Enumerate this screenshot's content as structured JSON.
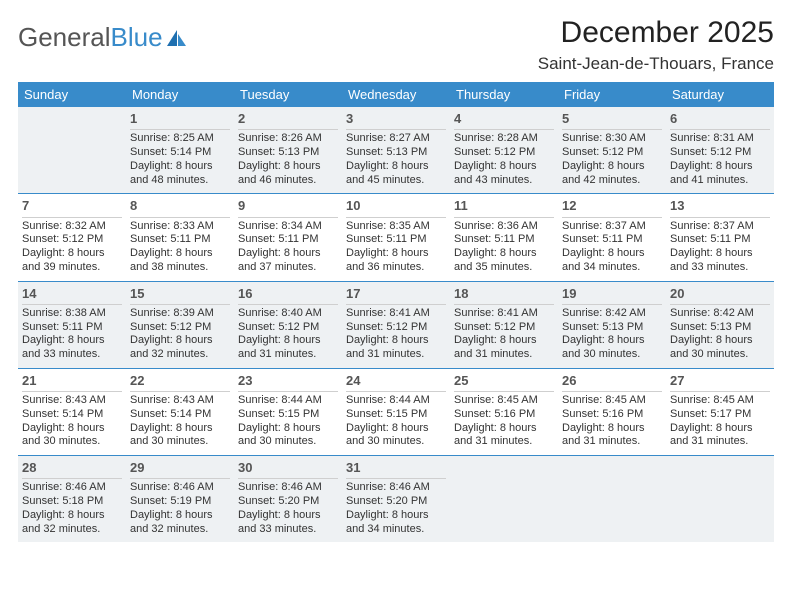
{
  "logo": {
    "text1": "General",
    "text2": "Blue"
  },
  "title": "December 2025",
  "location": "Saint-Jean-de-Thouars, France",
  "colors": {
    "accent": "#388bca",
    "shade": "#eef1f3",
    "rule": "#cfcfcf",
    "text": "#333333"
  },
  "dow": [
    "Sunday",
    "Monday",
    "Tuesday",
    "Wednesday",
    "Thursday",
    "Friday",
    "Saturday"
  ],
  "weeks": [
    [
      {
        "n": "",
        "sr": "",
        "ss": "",
        "dl": ""
      },
      {
        "n": "1",
        "sr": "Sunrise: 8:25 AM",
        "ss": "Sunset: 5:14 PM",
        "dl": "Daylight: 8 hours and 48 minutes."
      },
      {
        "n": "2",
        "sr": "Sunrise: 8:26 AM",
        "ss": "Sunset: 5:13 PM",
        "dl": "Daylight: 8 hours and 46 minutes."
      },
      {
        "n": "3",
        "sr": "Sunrise: 8:27 AM",
        "ss": "Sunset: 5:13 PM",
        "dl": "Daylight: 8 hours and 45 minutes."
      },
      {
        "n": "4",
        "sr": "Sunrise: 8:28 AM",
        "ss": "Sunset: 5:12 PM",
        "dl": "Daylight: 8 hours and 43 minutes."
      },
      {
        "n": "5",
        "sr": "Sunrise: 8:30 AM",
        "ss": "Sunset: 5:12 PM",
        "dl": "Daylight: 8 hours and 42 minutes."
      },
      {
        "n": "6",
        "sr": "Sunrise: 8:31 AM",
        "ss": "Sunset: 5:12 PM",
        "dl": "Daylight: 8 hours and 41 minutes."
      }
    ],
    [
      {
        "n": "7",
        "sr": "Sunrise: 8:32 AM",
        "ss": "Sunset: 5:12 PM",
        "dl": "Daylight: 8 hours and 39 minutes."
      },
      {
        "n": "8",
        "sr": "Sunrise: 8:33 AM",
        "ss": "Sunset: 5:11 PM",
        "dl": "Daylight: 8 hours and 38 minutes."
      },
      {
        "n": "9",
        "sr": "Sunrise: 8:34 AM",
        "ss": "Sunset: 5:11 PM",
        "dl": "Daylight: 8 hours and 37 minutes."
      },
      {
        "n": "10",
        "sr": "Sunrise: 8:35 AM",
        "ss": "Sunset: 5:11 PM",
        "dl": "Daylight: 8 hours and 36 minutes."
      },
      {
        "n": "11",
        "sr": "Sunrise: 8:36 AM",
        "ss": "Sunset: 5:11 PM",
        "dl": "Daylight: 8 hours and 35 minutes."
      },
      {
        "n": "12",
        "sr": "Sunrise: 8:37 AM",
        "ss": "Sunset: 5:11 PM",
        "dl": "Daylight: 8 hours and 34 minutes."
      },
      {
        "n": "13",
        "sr": "Sunrise: 8:37 AM",
        "ss": "Sunset: 5:11 PM",
        "dl": "Daylight: 8 hours and 33 minutes."
      }
    ],
    [
      {
        "n": "14",
        "sr": "Sunrise: 8:38 AM",
        "ss": "Sunset: 5:11 PM",
        "dl": "Daylight: 8 hours and 33 minutes."
      },
      {
        "n": "15",
        "sr": "Sunrise: 8:39 AM",
        "ss": "Sunset: 5:12 PM",
        "dl": "Daylight: 8 hours and 32 minutes."
      },
      {
        "n": "16",
        "sr": "Sunrise: 8:40 AM",
        "ss": "Sunset: 5:12 PM",
        "dl": "Daylight: 8 hours and 31 minutes."
      },
      {
        "n": "17",
        "sr": "Sunrise: 8:41 AM",
        "ss": "Sunset: 5:12 PM",
        "dl": "Daylight: 8 hours and 31 minutes."
      },
      {
        "n": "18",
        "sr": "Sunrise: 8:41 AM",
        "ss": "Sunset: 5:12 PM",
        "dl": "Daylight: 8 hours and 31 minutes."
      },
      {
        "n": "19",
        "sr": "Sunrise: 8:42 AM",
        "ss": "Sunset: 5:13 PM",
        "dl": "Daylight: 8 hours and 30 minutes."
      },
      {
        "n": "20",
        "sr": "Sunrise: 8:42 AM",
        "ss": "Sunset: 5:13 PM",
        "dl": "Daylight: 8 hours and 30 minutes."
      }
    ],
    [
      {
        "n": "21",
        "sr": "Sunrise: 8:43 AM",
        "ss": "Sunset: 5:14 PM",
        "dl": "Daylight: 8 hours and 30 minutes."
      },
      {
        "n": "22",
        "sr": "Sunrise: 8:43 AM",
        "ss": "Sunset: 5:14 PM",
        "dl": "Daylight: 8 hours and 30 minutes."
      },
      {
        "n": "23",
        "sr": "Sunrise: 8:44 AM",
        "ss": "Sunset: 5:15 PM",
        "dl": "Daylight: 8 hours and 30 minutes."
      },
      {
        "n": "24",
        "sr": "Sunrise: 8:44 AM",
        "ss": "Sunset: 5:15 PM",
        "dl": "Daylight: 8 hours and 30 minutes."
      },
      {
        "n": "25",
        "sr": "Sunrise: 8:45 AM",
        "ss": "Sunset: 5:16 PM",
        "dl": "Daylight: 8 hours and 31 minutes."
      },
      {
        "n": "26",
        "sr": "Sunrise: 8:45 AM",
        "ss": "Sunset: 5:16 PM",
        "dl": "Daylight: 8 hours and 31 minutes."
      },
      {
        "n": "27",
        "sr": "Sunrise: 8:45 AM",
        "ss": "Sunset: 5:17 PM",
        "dl": "Daylight: 8 hours and 31 minutes."
      }
    ],
    [
      {
        "n": "28",
        "sr": "Sunrise: 8:46 AM",
        "ss": "Sunset: 5:18 PM",
        "dl": "Daylight: 8 hours and 32 minutes."
      },
      {
        "n": "29",
        "sr": "Sunrise: 8:46 AM",
        "ss": "Sunset: 5:19 PM",
        "dl": "Daylight: 8 hours and 32 minutes."
      },
      {
        "n": "30",
        "sr": "Sunrise: 8:46 AM",
        "ss": "Sunset: 5:20 PM",
        "dl": "Daylight: 8 hours and 33 minutes."
      },
      {
        "n": "31",
        "sr": "Sunrise: 8:46 AM",
        "ss": "Sunset: 5:20 PM",
        "dl": "Daylight: 8 hours and 34 minutes."
      },
      {
        "n": "",
        "sr": "",
        "ss": "",
        "dl": ""
      },
      {
        "n": "",
        "sr": "",
        "ss": "",
        "dl": ""
      },
      {
        "n": "",
        "sr": "",
        "ss": "",
        "dl": ""
      }
    ]
  ]
}
